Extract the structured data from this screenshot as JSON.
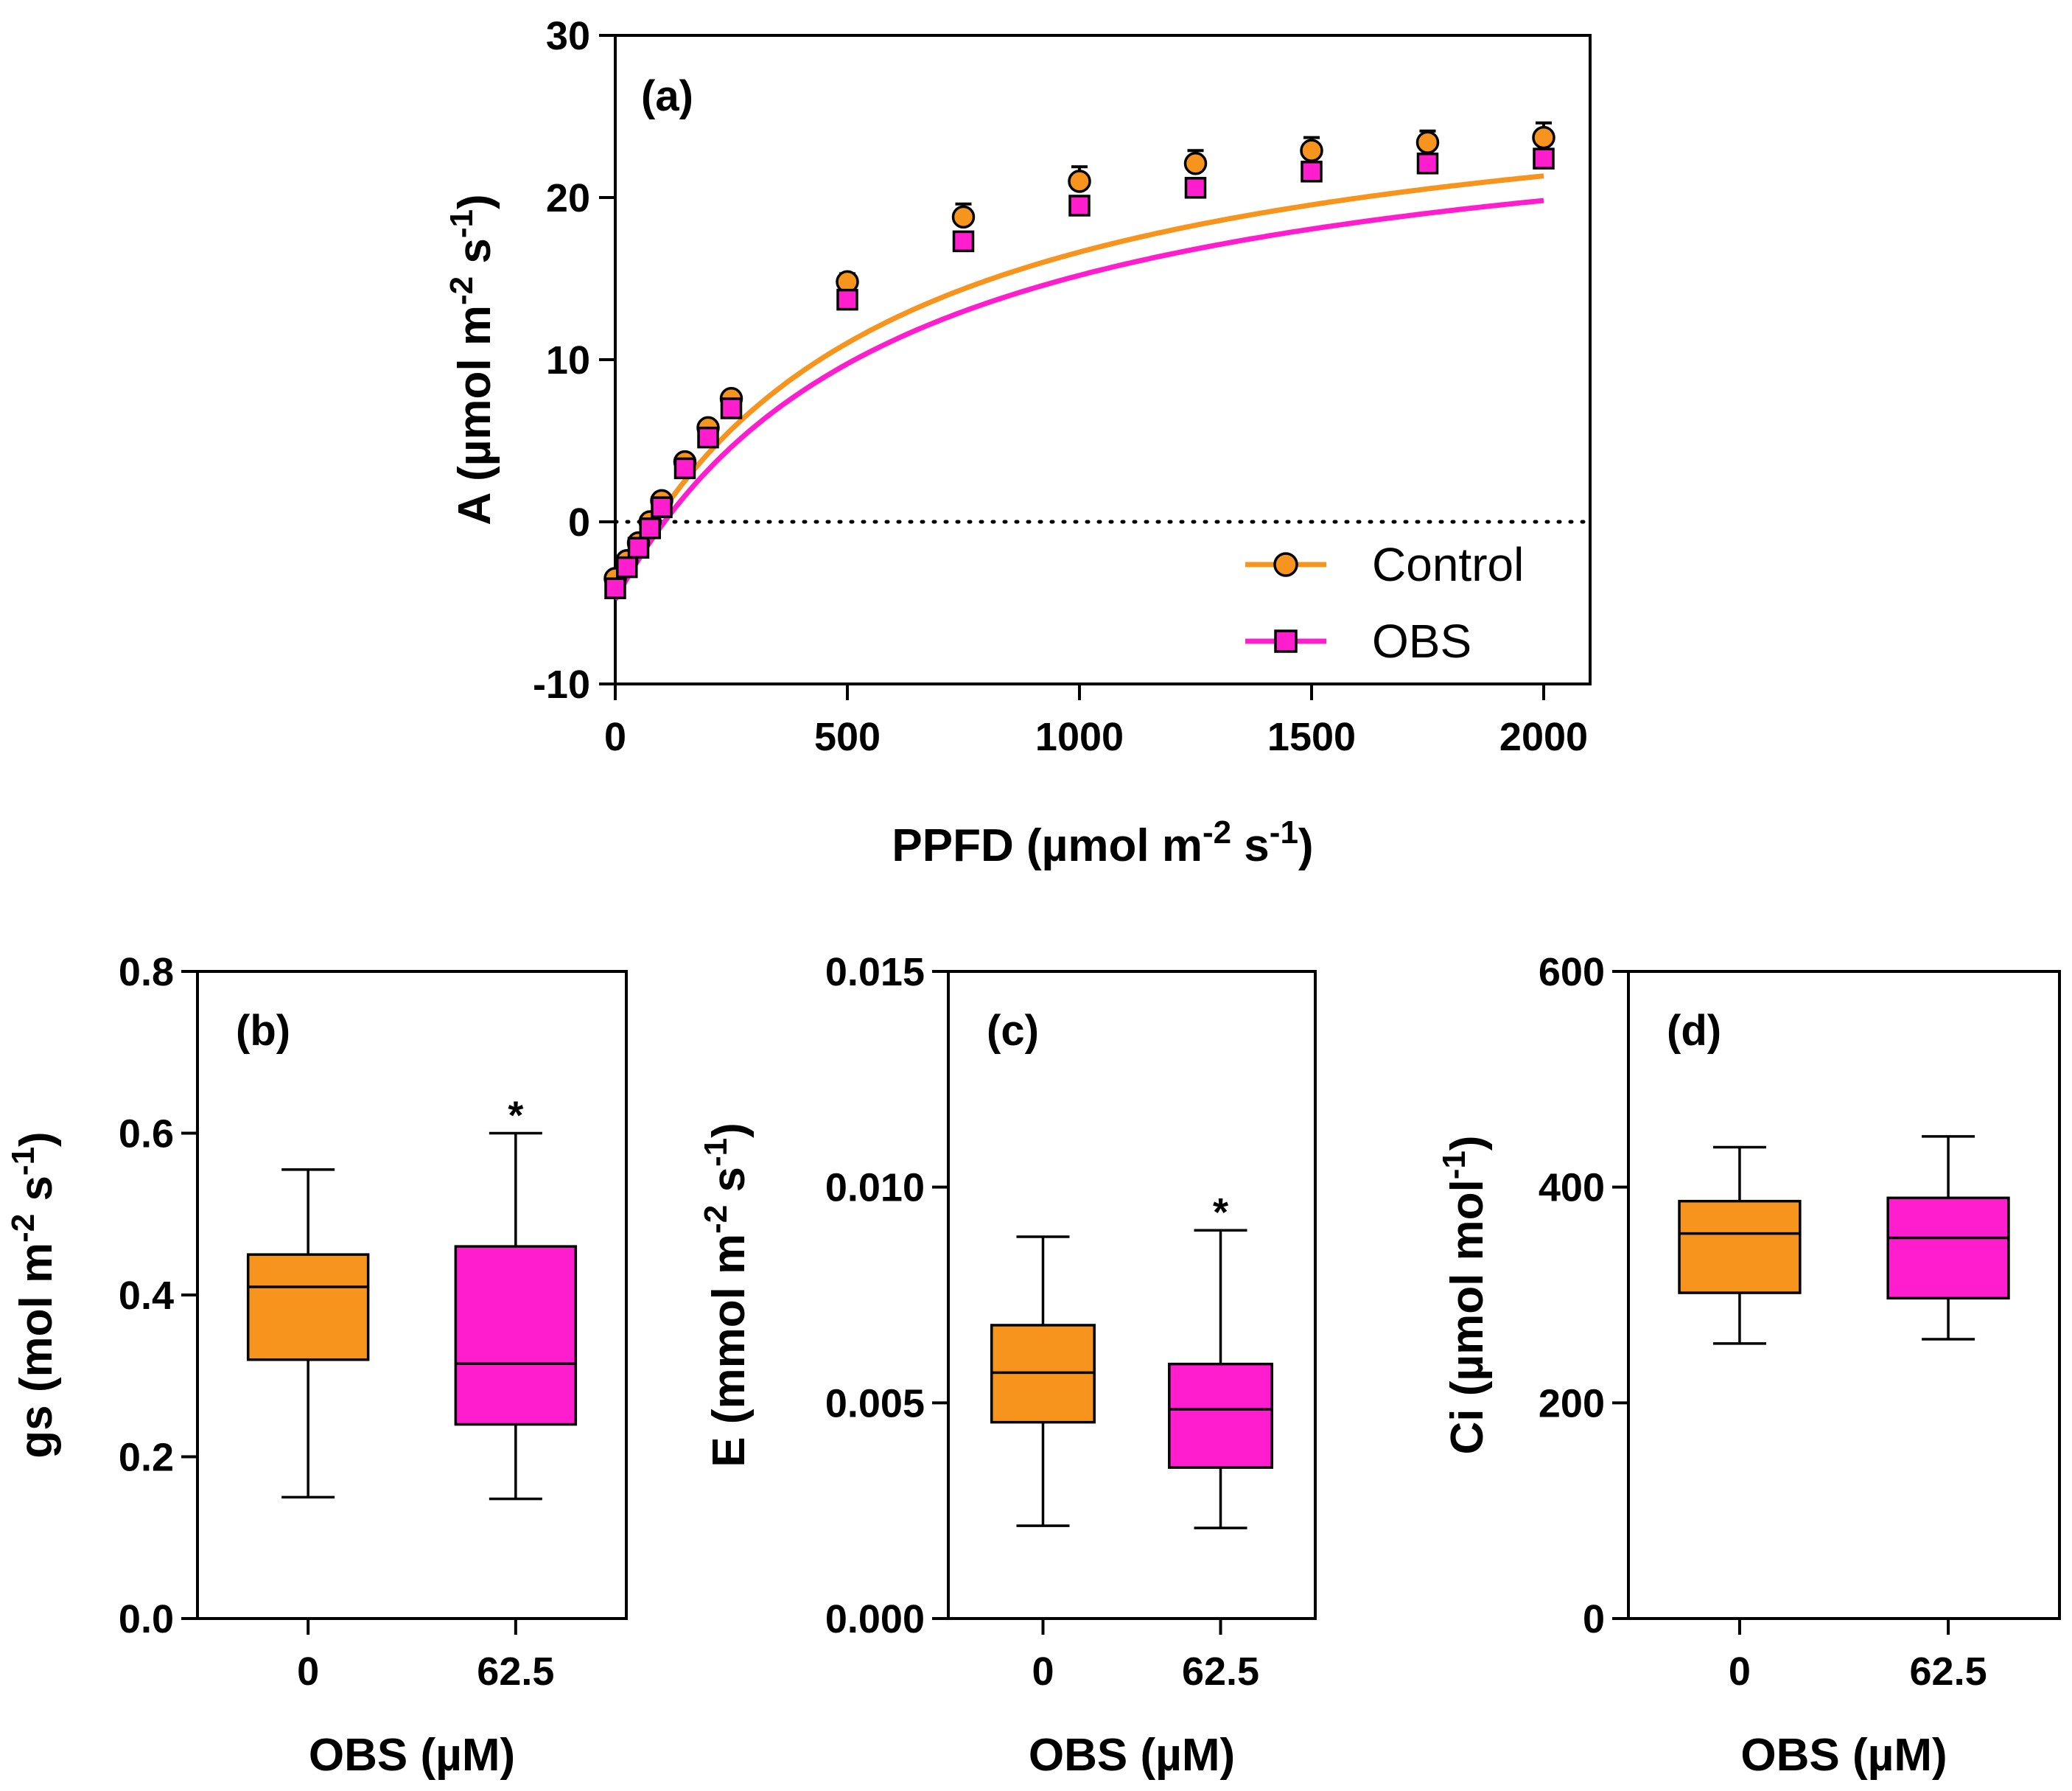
{
  "colors": {
    "control": "#F7941D",
    "obs": "#FF1DCE",
    "axis": "#000000"
  },
  "chart_data": [
    {
      "id": "a",
      "type": "line",
      "panel_label": "(a)",
      "xlabel": "PPFD (µmol m-2 s-1)",
      "ylabel": "A (µmol m-2 s-1)",
      "xlim": [
        0,
        2100
      ],
      "ylim": [
        -10,
        30
      ],
      "x_ticks": [
        "0",
        "500",
        "1000",
        "1500",
        "2000"
      ],
      "y_ticks": [
        "-10",
        "0",
        "10",
        "20",
        "30"
      ],
      "zero_line": "dotted",
      "legend_position": "bottom-right",
      "series": [
        {
          "name": "Control",
          "marker": "circle",
          "x": [
            0,
            25,
            50,
            75,
            100,
            150,
            200,
            250,
            500,
            750,
            1000,
            1250,
            1500,
            1750,
            2000
          ],
          "y": [
            -3.5,
            -2.4,
            -1.3,
            0.0,
            1.3,
            3.7,
            5.8,
            7.6,
            14.8,
            18.8,
            21.0,
            22.1,
            22.9,
            23.4,
            23.7
          ],
          "err": [
            0.4,
            0.4,
            0.3,
            0.3,
            0.3,
            0.3,
            0.4,
            0.4,
            0.5,
            0.8,
            0.9,
            0.8,
            0.8,
            0.7,
            0.9
          ],
          "fit": {
            "amax": 33.0,
            "k": 580,
            "rd": 4.25
          }
        },
        {
          "name": "OBS",
          "marker": "square",
          "x": [
            0,
            25,
            50,
            75,
            100,
            150,
            200,
            250,
            500,
            750,
            1000,
            1250,
            1500,
            1750,
            2000
          ],
          "y": [
            -4.1,
            -2.8,
            -1.6,
            -0.4,
            0.9,
            3.3,
            5.2,
            7.0,
            13.7,
            17.3,
            19.5,
            20.6,
            21.6,
            22.1,
            22.4
          ],
          "err": [
            0.3,
            0.3,
            0.3,
            0.3,
            0.3,
            0.3,
            0.3,
            0.3,
            0.4,
            0.5,
            0.5,
            0.5,
            0.5,
            0.5,
            0.5
          ],
          "fit": {
            "amax": 32.0,
            "k": 600,
            "rd": 4.8
          }
        }
      ]
    },
    {
      "id": "b",
      "type": "box",
      "panel_label": "(b)",
      "xlabel": "OBS (µM)",
      "ylabel": "gs (mol m-2 s-1)",
      "ylim": [
        0,
        0.8
      ],
      "y_ticks": [
        "0.0",
        "0.2",
        "0.4",
        "0.6",
        "0.8"
      ],
      "categories": [
        "0",
        "62.5"
      ],
      "boxes": [
        {
          "min": 0.15,
          "q1": 0.32,
          "median": 0.41,
          "q3": 0.45,
          "max": 0.555,
          "sig": ""
        },
        {
          "min": 0.148,
          "q1": 0.24,
          "median": 0.315,
          "q3": 0.46,
          "max": 0.6,
          "sig": "*"
        }
      ]
    },
    {
      "id": "c",
      "type": "box",
      "panel_label": "(c)",
      "xlabel": "OBS (µM)",
      "ylabel": "E (mmol m-2 s-1)",
      "ylim": [
        0,
        0.015
      ],
      "y_ticks": [
        "0.000",
        "0.005",
        "0.010",
        "0.015"
      ],
      "categories": [
        "0",
        "62.5"
      ],
      "boxes": [
        {
          "min": 0.00215,
          "q1": 0.00455,
          "median": 0.0057,
          "q3": 0.0068,
          "max": 0.00885,
          "sig": ""
        },
        {
          "min": 0.0021,
          "q1": 0.0035,
          "median": 0.00485,
          "q3": 0.0059,
          "max": 0.009,
          "sig": "*"
        }
      ]
    },
    {
      "id": "d",
      "type": "box",
      "panel_label": "(d)",
      "xlabel": "OBS (µM)",
      "ylabel": "Ci (µmol mol-1)",
      "ylim": [
        0,
        600
      ],
      "y_ticks": [
        "0",
        "200",
        "400",
        "600"
      ],
      "categories": [
        "0",
        "62.5"
      ],
      "boxes": [
        {
          "min": 255,
          "q1": 302,
          "median": 357,
          "q3": 387,
          "max": 437,
          "sig": ""
        },
        {
          "min": 259,
          "q1": 297,
          "median": 353,
          "q3": 390,
          "max": 447,
          "sig": ""
        }
      ]
    }
  ]
}
